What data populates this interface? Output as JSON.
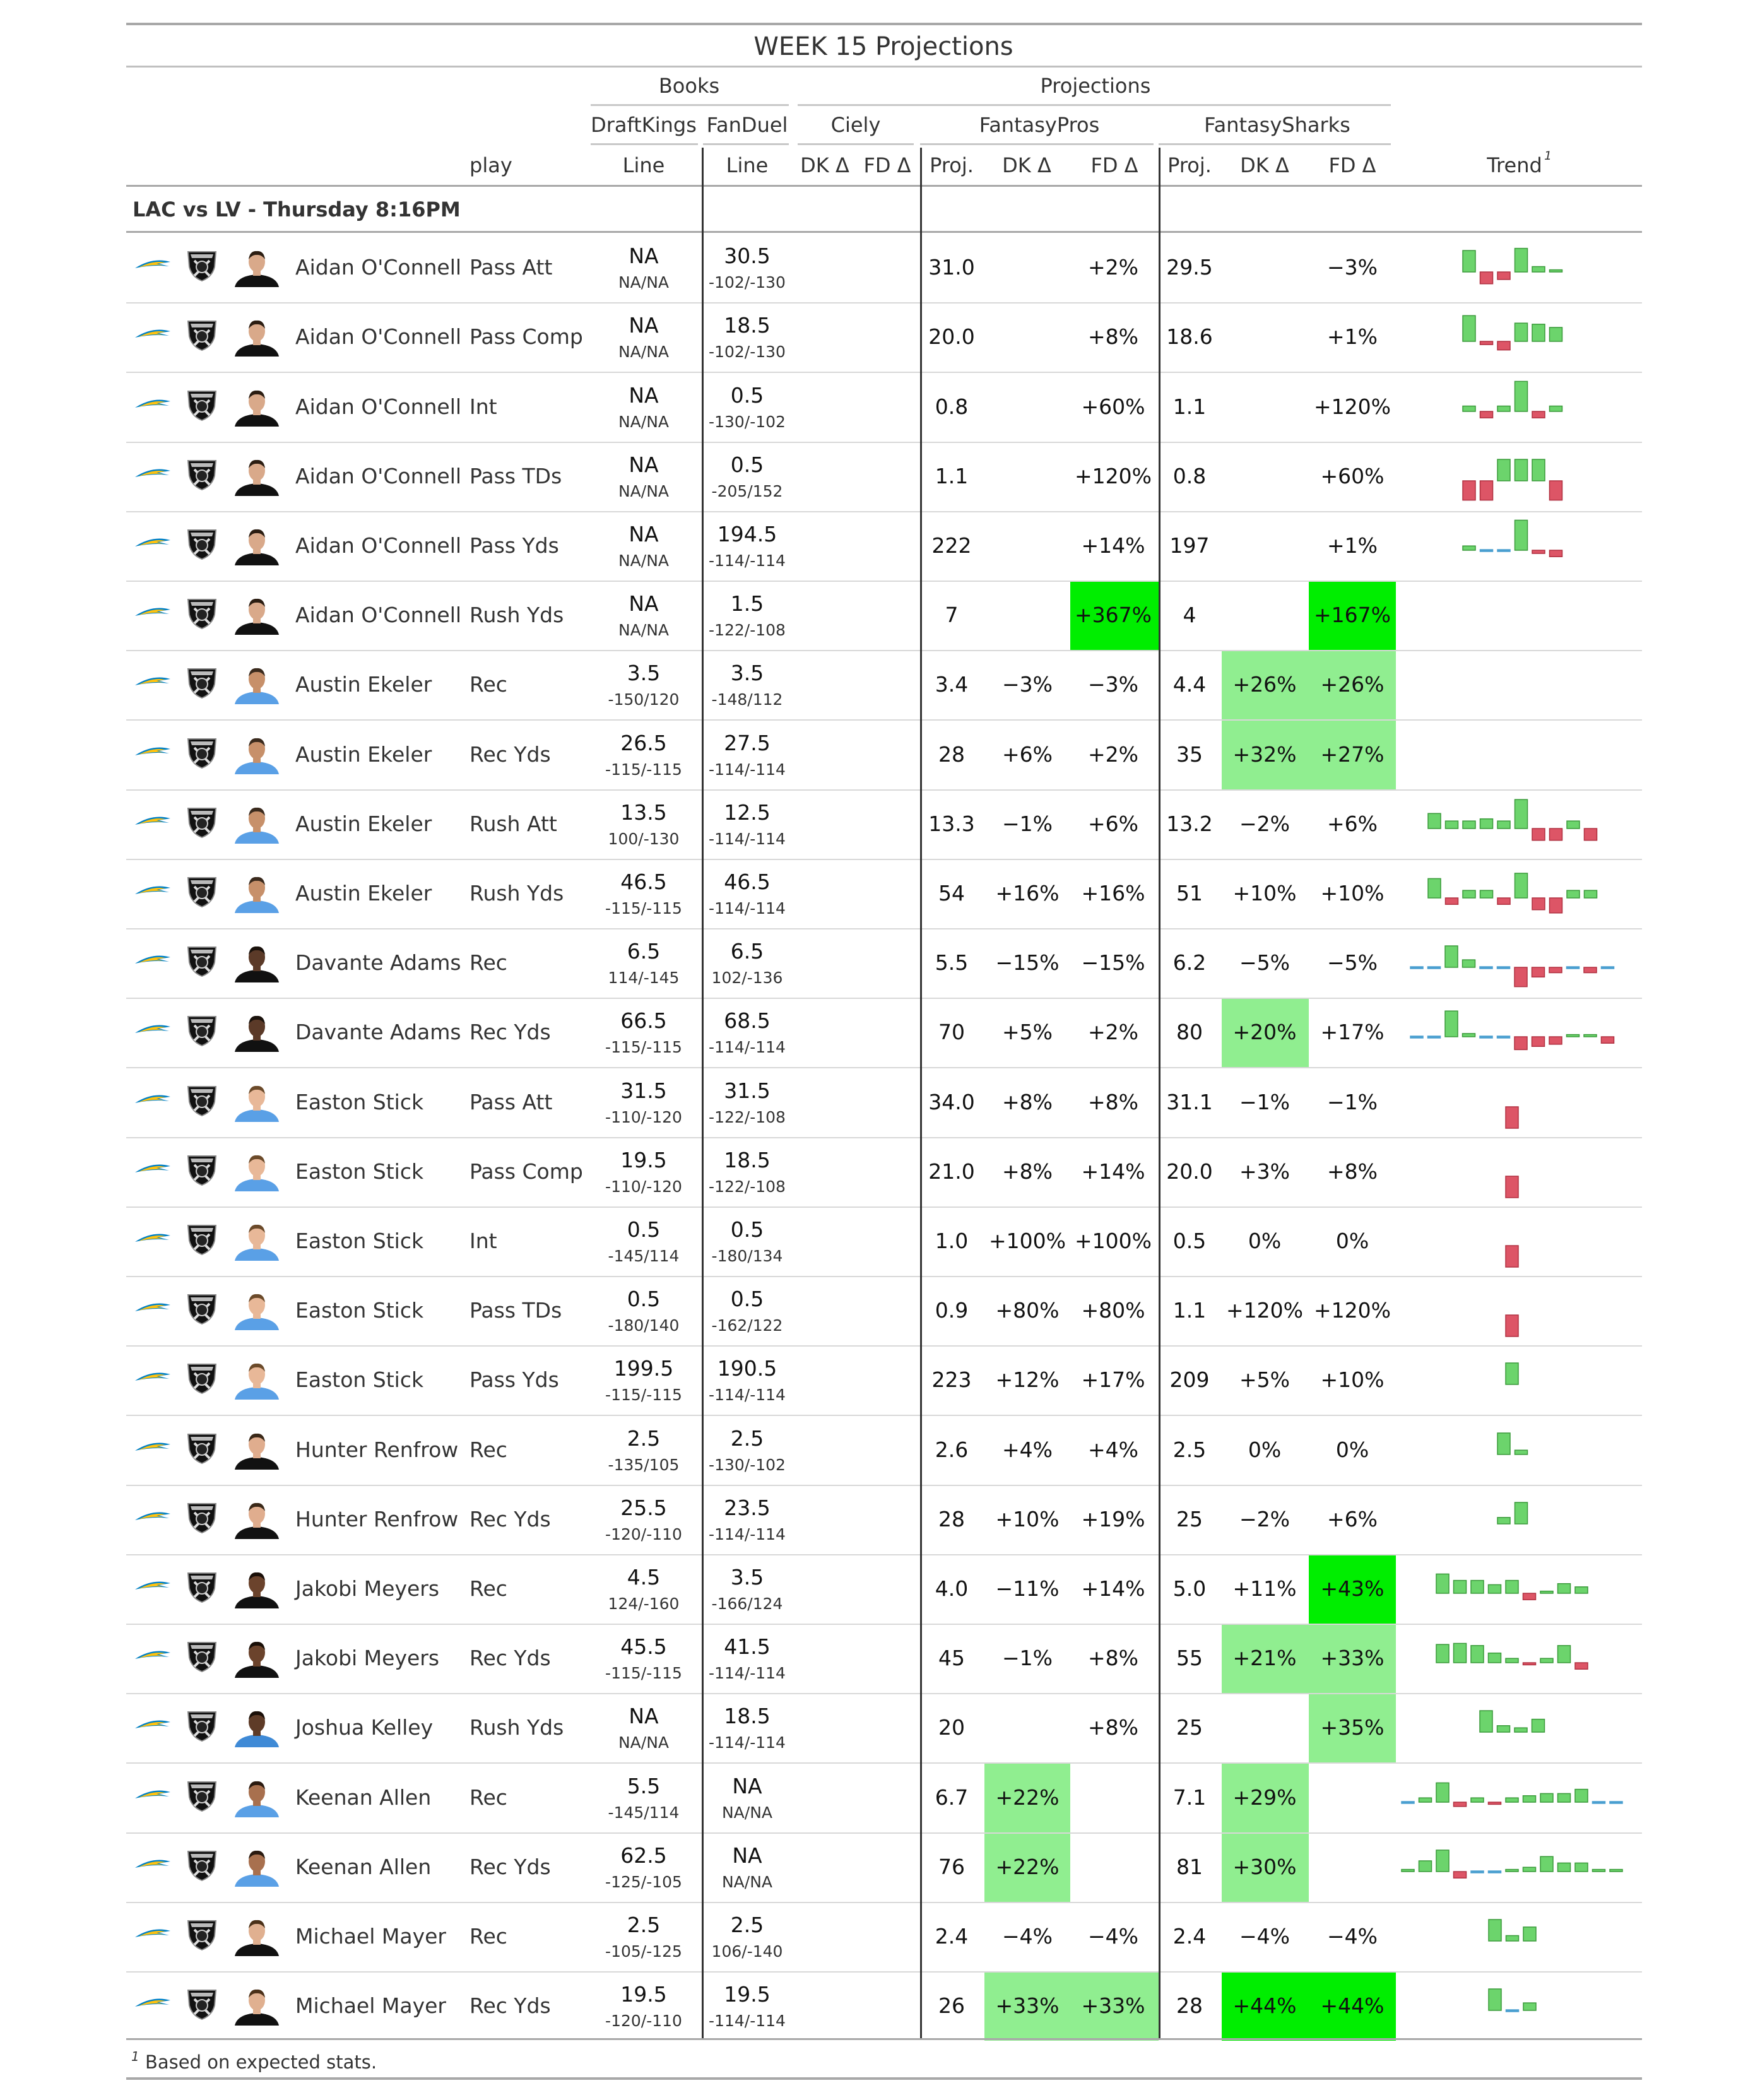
{
  "title": "WEEK 15 Projections",
  "headers": {
    "books": "Books",
    "projections": "Projections",
    "draftkings": "DraftKings",
    "fanduel": "FanDuel",
    "ciely": "Ciely",
    "fantasypros": "FantasyPros",
    "fantasysharks": "FantasySharks",
    "play": "play",
    "line": "Line",
    "dk_delta": "DK Δ",
    "fd_delta": "FD Δ",
    "proj": "Proj.",
    "trend": "Trend",
    "trend_sup": "1"
  },
  "game": "LAC vs LV - Thursday 8:16PM",
  "footnote_mark": "1",
  "footnote": "Based on expected stats.",
  "colors": {
    "strong_green": "#00ee00",
    "light_green": "#90ee90",
    "bar_pos": "#6cd46c",
    "bar_neg": "#dd5566",
    "bar_neutral": "#4a9fd0",
    "chargers_blue": "#0080c6",
    "chargers_gold": "#ffc20e"
  },
  "rows": [
    {
      "player": "Aidan O'Connell",
      "play": "Pass Att",
      "dk_line": "NA",
      "dk_odds": "NA/NA",
      "fd_line": "30.5",
      "fd_odds": "-102/-130",
      "fp_proj": "31.0",
      "fp_dk": "",
      "fp_fd": "+2%",
      "fs_proj": "29.5",
      "fs_dk": "",
      "fs_fd": "−3%",
      "hl": {},
      "trend": [
        1.0,
        -0.55,
        -0.35,
        1.1,
        0.25,
        0.1
      ]
    },
    {
      "player": "Aidan O'Connell",
      "play": "Pass Comp",
      "dk_line": "NA",
      "dk_odds": "NA/NA",
      "fd_line": "18.5",
      "fd_odds": "-102/-130",
      "fp_proj": "20.0",
      "fp_dk": "",
      "fp_fd": "+8%",
      "fs_proj": "18.6",
      "fs_dk": "",
      "fs_fd": "+1%",
      "hl": {},
      "trend": [
        1.2,
        -0.15,
        -0.4,
        0.85,
        0.8,
        0.65
      ]
    },
    {
      "player": "Aidan O'Connell",
      "play": "Int",
      "dk_line": "NA",
      "dk_odds": "NA/NA",
      "fd_line": "0.5",
      "fd_odds": "-130/-102",
      "fp_proj": "0.8",
      "fp_dk": "",
      "fp_fd": "+60%",
      "fs_proj": "1.1",
      "fs_dk": "",
      "fs_fd": "+120%",
      "hl": {},
      "trend": [
        0.25,
        -0.3,
        0.25,
        1.4,
        -0.3,
        0.25
      ]
    },
    {
      "player": "Aidan O'Connell",
      "play": "Pass TDs",
      "dk_line": "NA",
      "dk_odds": "NA/NA",
      "fd_line": "0.5",
      "fd_odds": "-205/152",
      "fp_proj": "1.1",
      "fp_dk": "",
      "fp_fd": "+120%",
      "fs_proj": "0.8",
      "fs_dk": "",
      "fs_fd": "+60%",
      "hl": {},
      "trend": [
        -0.9,
        -0.9,
        1.0,
        1.0,
        1.0,
        -0.9
      ]
    },
    {
      "player": "Aidan O'Connell",
      "play": "Pass Yds",
      "dk_line": "NA",
      "dk_odds": "NA/NA",
      "fd_line": "194.5",
      "fd_odds": "-114/-114",
      "fp_proj": "222",
      "fp_dk": "",
      "fp_fd": "+14%",
      "fs_proj": "197",
      "fs_dk": "",
      "fs_fd": "+1%",
      "hl": {},
      "trend": [
        0.2,
        0.02,
        0.02,
        1.4,
        -0.15,
        -0.3
      ]
    },
    {
      "player": "Aidan O'Connell",
      "play": "Rush Yds",
      "dk_line": "NA",
      "dk_odds": "NA/NA",
      "fd_line": "1.5",
      "fd_odds": "-122/-108",
      "fp_proj": "7",
      "fp_dk": "",
      "fp_fd": "+367%",
      "fs_proj": "4",
      "fs_dk": "",
      "fs_fd": "+167%",
      "hl": {
        "fp_fd": "s",
        "fs_fd": "s"
      },
      "trend": []
    },
    {
      "player": "Austin Ekeler",
      "play": "Rec",
      "dk_line": "3.5",
      "dk_odds": "-150/120",
      "fd_line": "3.5",
      "fd_odds": "-148/112",
      "fp_proj": "3.4",
      "fp_dk": "−3%",
      "fp_fd": "−3%",
      "fs_proj": "4.4",
      "fs_dk": "+26%",
      "fs_fd": "+26%",
      "hl": {
        "fs_dk": "l",
        "fs_fd": "l"
      },
      "trend": []
    },
    {
      "player": "Austin Ekeler",
      "play": "Rec Yds",
      "dk_line": "26.5",
      "dk_odds": "-115/-115",
      "fd_line": "27.5",
      "fd_odds": "-114/-114",
      "fp_proj": "28",
      "fp_dk": "+6%",
      "fp_fd": "+2%",
      "fs_proj": "35",
      "fs_dk": "+32%",
      "fs_fd": "+27%",
      "hl": {
        "fs_dk": "l",
        "fs_fd": "l"
      },
      "trend": []
    },
    {
      "player": "Austin Ekeler",
      "play": "Rush Att",
      "dk_line": "13.5",
      "dk_odds": "100/-130",
      "fd_line": "12.5",
      "fd_odds": "-114/-114",
      "fp_proj": "13.3",
      "fp_dk": "−1%",
      "fp_fd": "+6%",
      "fs_proj": "13.2",
      "fs_dk": "−2%",
      "fs_fd": "+6%",
      "hl": {},
      "trend": [
        0.7,
        0.35,
        0.35,
        0.45,
        0.35,
        1.35,
        -0.55,
        -0.55,
        0.35,
        -0.55
      ]
    },
    {
      "player": "Austin Ekeler",
      "play": "Rush Yds",
      "dk_line": "46.5",
      "dk_odds": "-115/-115",
      "fd_line": "46.5",
      "fd_odds": "-114/-114",
      "fp_proj": "54",
      "fp_dk": "+16%",
      "fp_fd": "+16%",
      "fs_proj": "51",
      "fs_dk": "+10%",
      "fs_fd": "+10%",
      "hl": {},
      "trend": [
        0.9,
        -0.3,
        0.35,
        0.35,
        -0.3,
        1.15,
        -0.55,
        -0.7,
        0.35,
        0.35
      ]
    },
    {
      "player": "Davante Adams",
      "play": "Rec",
      "dk_line": "6.5",
      "dk_odds": "114/-145",
      "fd_line": "6.5",
      "fd_odds": "102/-136",
      "fp_proj": "5.5",
      "fp_dk": "−15%",
      "fp_fd": "−15%",
      "fs_proj": "6.2",
      "fs_dk": "−5%",
      "fs_fd": "−5%",
      "hl": {},
      "trend": [
        -0.05,
        -0.05,
        1.0,
        0.35,
        -0.05,
        0.05,
        -0.9,
        -0.45,
        -0.25,
        0.05,
        -0.25,
        0.05
      ]
    },
    {
      "player": "Davante Adams",
      "play": "Rec Yds",
      "dk_line": "66.5",
      "dk_odds": "-115/-115",
      "fd_line": "68.5",
      "fd_odds": "-114/-114",
      "fp_proj": "70",
      "fp_dk": "+5%",
      "fp_fd": "+2%",
      "fs_proj": "80",
      "fs_dk": "+20%",
      "fs_fd": "+17%",
      "hl": {
        "fs_dk": "l"
      },
      "trend": [
        0.05,
        0.05,
        1.2,
        0.15,
        -0.05,
        0.05,
        -0.6,
        -0.45,
        -0.35,
        0.1,
        0.1,
        -0.3
      ]
    },
    {
      "player": "Easton Stick",
      "play": "Pass Att",
      "dk_line": "31.5",
      "dk_odds": "-110/-120",
      "fd_line": "31.5",
      "fd_odds": "-122/-108",
      "fp_proj": "34.0",
      "fp_dk": "+8%",
      "fp_fd": "+8%",
      "fs_proj": "31.1",
      "fs_dk": "−1%",
      "fs_fd": "−1%",
      "hl": {},
      "trend": [
        -1.0
      ]
    },
    {
      "player": "Easton Stick",
      "play": "Pass Comp",
      "dk_line": "19.5",
      "dk_odds": "-110/-120",
      "fd_line": "18.5",
      "fd_odds": "-122/-108",
      "fp_proj": "21.0",
      "fp_dk": "+8%",
      "fp_fd": "+14%",
      "fs_proj": "20.0",
      "fs_dk": "+3%",
      "fs_fd": "+8%",
      "hl": {},
      "trend": [
        -1.0
      ]
    },
    {
      "player": "Easton Stick",
      "play": "Int",
      "dk_line": "0.5",
      "dk_odds": "-145/114",
      "fd_line": "0.5",
      "fd_odds": "-180/134",
      "fp_proj": "1.0",
      "fp_dk": "+100%",
      "fp_fd": "+100%",
      "fs_proj": "0.5",
      "fs_dk": "0%",
      "fs_fd": "0%",
      "hl": {},
      "trend": [
        -1.0
      ]
    },
    {
      "player": "Easton Stick",
      "play": "Pass TDs",
      "dk_line": "0.5",
      "dk_odds": "-180/140",
      "fd_line": "0.5",
      "fd_odds": "-162/122",
      "fp_proj": "0.9",
      "fp_dk": "+80%",
      "fp_fd": "+80%",
      "fs_proj": "1.1",
      "fs_dk": "+120%",
      "fs_fd": "+120%",
      "hl": {},
      "trend": [
        -1.0
      ]
    },
    {
      "player": "Easton Stick",
      "play": "Pass Yds",
      "dk_line": "199.5",
      "dk_odds": "-115/-115",
      "fd_line": "190.5",
      "fd_odds": "-114/-114",
      "fp_proj": "223",
      "fp_dk": "+12%",
      "fp_fd": "+17%",
      "fs_proj": "209",
      "fs_dk": "+5%",
      "fs_fd": "+10%",
      "hl": {},
      "trend": [
        1.0
      ]
    },
    {
      "player": "Hunter Renfrow",
      "play": "Rec",
      "dk_line": "2.5",
      "dk_odds": "-135/105",
      "fd_line": "2.5",
      "fd_odds": "-130/-102",
      "fp_proj": "2.6",
      "fp_dk": "+4%",
      "fp_fd": "+4%",
      "fs_proj": "2.5",
      "fs_dk": "0%",
      "fs_fd": "0%",
      "hl": {},
      "trend": [
        1.0,
        0.2
      ]
    },
    {
      "player": "Hunter Renfrow",
      "play": "Rec Yds",
      "dk_line": "25.5",
      "dk_odds": "-120/-110",
      "fd_line": "23.5",
      "fd_odds": "-114/-114",
      "fp_proj": "28",
      "fp_dk": "+10%",
      "fp_fd": "+19%",
      "fs_proj": "25",
      "fs_dk": "−2%",
      "fs_fd": "+6%",
      "hl": {},
      "trend": [
        0.3,
        1.0
      ]
    },
    {
      "player": "Jakobi Meyers",
      "play": "Rec",
      "dk_line": "4.5",
      "dk_odds": "124/-160",
      "fd_line": "3.5",
      "fd_odds": "-166/124",
      "fp_proj": "4.0",
      "fp_dk": "−11%",
      "fp_fd": "+14%",
      "fs_proj": "5.0",
      "fs_dk": "+11%",
      "fs_fd": "+43%",
      "hl": {
        "fs_fd": "s"
      },
      "trend": [
        0.9,
        0.6,
        0.6,
        0.4,
        0.6,
        -0.3,
        0.1,
        0.45,
        0.3
      ]
    },
    {
      "player": "Jakobi Meyers",
      "play": "Rec Yds",
      "dk_line": "45.5",
      "dk_odds": "-115/-115",
      "fd_line": "41.5",
      "fd_odds": "-114/-114",
      "fp_proj": "45",
      "fp_dk": "−1%",
      "fp_fd": "+8%",
      "fs_proj": "55",
      "fs_dk": "+21%",
      "fs_fd": "+33%",
      "hl": {
        "fs_dk": "l",
        "fs_fd": "l"
      },
      "trend": [
        0.85,
        0.9,
        0.8,
        0.45,
        0.2,
        -0.1,
        0.2,
        0.8,
        -0.3
      ]
    },
    {
      "player": "Joshua Kelley",
      "play": "Rush Yds",
      "dk_line": "NA",
      "dk_odds": "NA/NA",
      "fd_line": "18.5",
      "fd_odds": "-114/-114",
      "fp_proj": "20",
      "fp_dk": "",
      "fp_fd": "+8%",
      "fs_proj": "25",
      "fs_dk": "",
      "fs_fd": "+35%",
      "hl": {
        "fs_fd": "l"
      },
      "trend": [
        1.0,
        0.3,
        0.2,
        0.6
      ]
    },
    {
      "player": "Keenan Allen",
      "play": "Rec",
      "dk_line": "5.5",
      "dk_odds": "-145/114",
      "fd_line": "NA",
      "fd_odds": "NA/NA",
      "fp_proj": "6.7",
      "fp_dk": "+22%",
      "fp_fd": "",
      "fs_proj": "7.1",
      "fs_dk": "+29%",
      "fs_fd": "",
      "hl": {
        "fp_dk": "l",
        "fs_dk": "l"
      },
      "trend": [
        0.05,
        0.2,
        0.9,
        -0.2,
        0.2,
        -0.1,
        0.2,
        0.3,
        0.4,
        0.4,
        0.6,
        0.05,
        0.05
      ]
    },
    {
      "player": "Keenan Allen",
      "play": "Rec Yds",
      "dk_line": "62.5",
      "dk_odds": "-125/-105",
      "fd_line": "NA",
      "fd_odds": "NA/NA",
      "fp_proj": "76",
      "fp_dk": "+22%",
      "fp_fd": "",
      "fs_proj": "81",
      "fs_dk": "+30%",
      "fs_fd": "",
      "hl": {
        "fp_dk": "l",
        "fs_dk": "l"
      },
      "trend": [
        0.1,
        0.5,
        1.0,
        -0.3,
        0.05,
        -0.05,
        0.1,
        0.2,
        0.7,
        0.4,
        0.4,
        0.1,
        0.1
      ]
    },
    {
      "player": "Michael Mayer",
      "play": "Rec",
      "dk_line": "2.5",
      "dk_odds": "-105/-125",
      "fd_line": "2.5",
      "fd_odds": "106/-140",
      "fp_proj": "2.4",
      "fp_dk": "−4%",
      "fp_fd": "−4%",
      "fs_proj": "2.4",
      "fs_dk": "−4%",
      "fs_fd": "−4%",
      "hl": {},
      "trend": [
        1.0,
        0.25,
        0.65
      ]
    },
    {
      "player": "Michael Mayer",
      "play": "Rec Yds",
      "dk_line": "19.5",
      "dk_odds": "-120/-110",
      "fd_line": "19.5",
      "fd_odds": "-114/-114",
      "fp_proj": "26",
      "fp_dk": "+33%",
      "fp_fd": "+33%",
      "fs_proj": "28",
      "fs_dk": "+44%",
      "fs_fd": "+44%",
      "hl": {
        "fp_dk": "l",
        "fp_fd": "l",
        "fs_dk": "s",
        "fs_fd": "s"
      },
      "trend": [
        1.0,
        -0.05,
        0.35
      ]
    }
  ]
}
